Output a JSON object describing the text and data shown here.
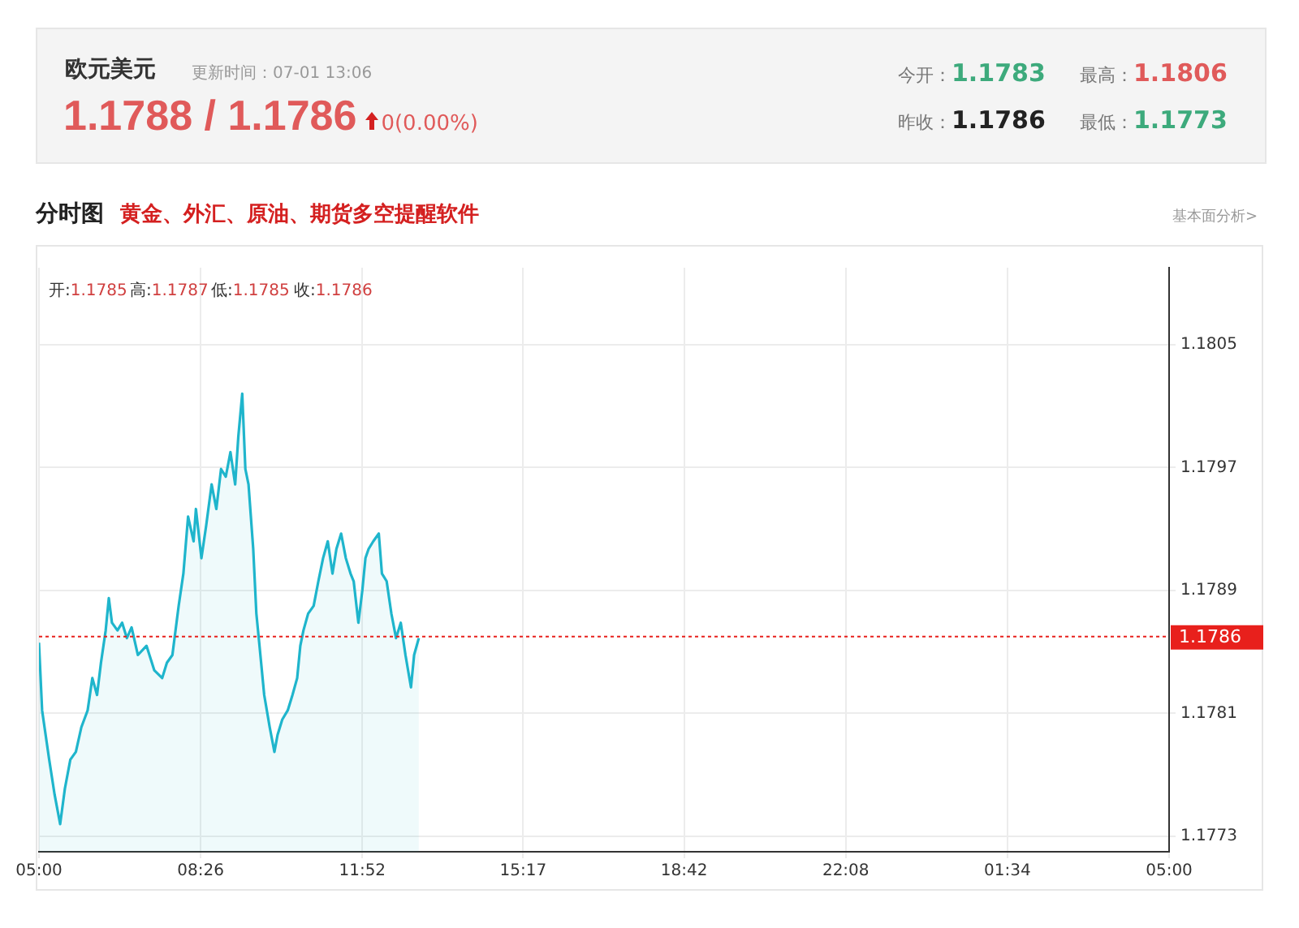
{
  "chart_data": {
    "type": "area",
    "title": "欧元美元",
    "subtitle": "分时图",
    "annotations": [
      "更新时间：07-01 13:06",
      "1.1788 / 1.1786",
      "0(0.00%)",
      "今开：1.1783",
      "最高：1.1806",
      "昨收：1.1786",
      "最低：1.1773",
      "黄金、外汇、原油、期货多空提醒软件",
      "基本面分析>",
      "开:1.1785",
      "高:1.1787",
      "低:1.1785",
      "收:1.1786"
    ],
    "x": [
      "--07-01T05:00",
      "--07-01T05:04",
      "--07-01T05:13",
      "--07-01T05:20",
      "--07-01T05:27",
      "--07-01T05:33",
      "--07-01T05:40",
      "--07-01T05:47",
      "--07-01T05:54",
      "--07-01T06:02",
      "--07-01T06:08",
      "--07-01T06:14",
      "--07-01T06:19",
      "--07-01T06:25",
      "--07-01T06:29",
      "--07-01T06:33",
      "--07-01T06:40",
      "--07-01T06:46",
      "--07-01T06:52",
      "--07-01T06:58",
      "--07-01T07:06",
      "--07-01T07:17",
      "--07-01T07:27",
      "--07-01T07:37",
      "--07-01T07:43",
      "--07-01T07:50",
      "--07-01T07:58",
      "--07-01T08:04",
      "--07-01T08:10",
      "--07-01T08:17",
      "--07-01T08:20",
      "--07-01T08:27",
      "--07-01T08:33",
      "--07-01T08:40",
      "--07-01T08:46",
      "--07-01T08:52",
      "--07-01T08:58",
      "--07-01T09:04",
      "--07-01T09:10",
      "--07-01T09:14",
      "--07-01T09:19",
      "--07-01T09:23",
      "--07-01T09:27",
      "--07-01T09:33",
      "--07-01T09:37",
      "--07-01T09:41",
      "--07-01T09:47",
      "--07-01T09:54",
      "--07-01T10:00",
      "--07-01T10:04",
      "--07-01T10:10",
      "--07-01T10:17",
      "--07-01T10:23",
      "--07-01T10:29",
      "--07-01T10:33",
      "--07-01T10:37",
      "--07-01T10:43",
      "--07-01T10:50",
      "--07-01T10:56",
      "--07-01T11:02",
      "--07-01T11:08",
      "--07-01T11:14",
      "--07-01T11:19",
      "--07-01T11:25",
      "--07-01T11:31",
      "--07-01T11:37",
      "--07-01T11:41",
      "--07-01T11:47",
      "--07-01T11:52",
      "--07-01T11:56",
      "--07-01T12:00",
      "--07-01T12:06",
      "--07-01T12:13",
      "--07-01T12:17",
      "--07-01T12:23",
      "--07-01T12:29",
      "--07-01T12:35",
      "--07-01T12:41",
      "--07-01T12:47",
      "--07-01T12:54",
      "--07-01T12:58",
      "--07-01T13:04"
    ],
    "series": [
      {
        "color": "#1fb5cc",
        "values": [
          1.17856,
          1.17812,
          1.1778,
          1.17757,
          1.17738,
          1.17761,
          1.1778,
          1.17785,
          1.17801,
          1.17812,
          1.17833,
          1.17822,
          1.17843,
          1.17864,
          1.17885,
          1.17869,
          1.17864,
          1.17869,
          1.17859,
          1.17866,
          1.17848,
          1.17854,
          1.17838,
          1.17833,
          1.17843,
          1.17848,
          1.1788,
          1.17901,
          1.17938,
          1.17922,
          1.17943,
          1.17911,
          1.17932,
          1.17959,
          1.17943,
          1.17969,
          1.17964,
          1.1798,
          1.17959,
          1.1799,
          1.18018,
          1.17969,
          1.17959,
          1.17917,
          1.17875,
          1.17854,
          1.17822,
          1.17801,
          1.17785,
          1.17796,
          1.17806,
          1.17812,
          1.17822,
          1.17833,
          1.17854,
          1.17864,
          1.17875,
          1.1788,
          1.17896,
          1.17911,
          1.17922,
          1.17901,
          1.17917,
          1.17927,
          1.17911,
          1.17901,
          1.17896,
          1.17869,
          1.1789,
          1.17911,
          1.17917,
          1.17922,
          1.17927,
          1.17901,
          1.17896,
          1.17875,
          1.17859,
          1.17869,
          1.17848,
          1.17827,
          1.17848,
          1.17859
        ]
      }
    ],
    "xlim": [
      "--07-01T05:00",
      "--07-02T05:00"
    ],
    "ylim": [
      1.1772,
      1.181
    ],
    "xticks": [
      {
        "value": "--07-01T05:00",
        "label": "05:00"
      },
      {
        "value": "--07-01T08:26",
        "label": "08:26"
      },
      {
        "value": "--07-01T11:52",
        "label": "11:52"
      },
      {
        "value": "--07-01T15:17",
        "label": "15:17"
      },
      {
        "value": "--07-01T18:42",
        "label": "18:42"
      },
      {
        "value": "--07-01T22:08",
        "label": "22:08"
      },
      {
        "value": "--07-02T01:34",
        "label": "01:34"
      },
      {
        "value": "--07-02T05:00",
        "label": "05:00"
      }
    ],
    "yticks": [
      1.1773,
      1.1781,
      1.1789,
      1.1797,
      1.1805
    ],
    "ref_lines": [
      {
        "axis": "y",
        "value": 1.1786,
        "label": "1.1786",
        "color": "#e8201c",
        "line_style": "dotted"
      }
    ],
    "grid": true,
    "legend": false,
    "marker": "none",
    "line_style": "solid"
  }
}
